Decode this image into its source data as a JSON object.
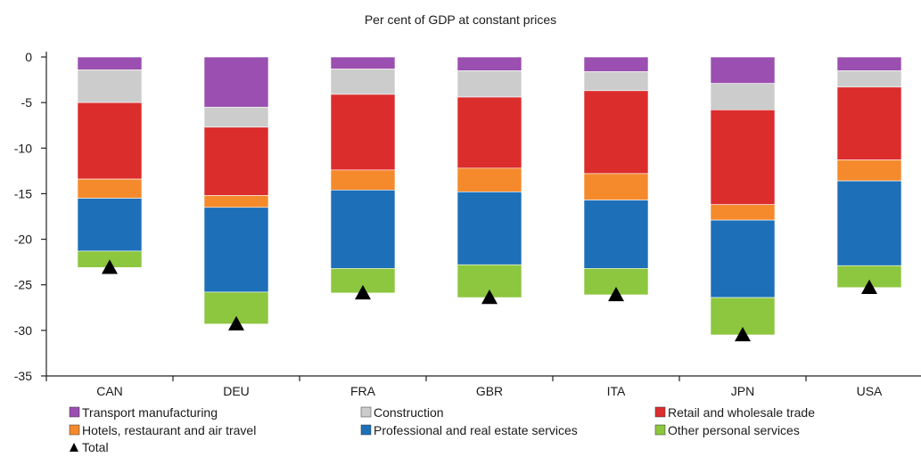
{
  "chart_data": {
    "type": "bar",
    "stacked": true,
    "title": "Per cent of GDP at constant prices",
    "categories": [
      "CAN",
      "DEU",
      "FRA",
      "GBR",
      "ITA",
      "JPN",
      "USA"
    ],
    "ylim": [
      -35,
      0
    ],
    "yticks": [
      0,
      -5,
      -10,
      -15,
      -20,
      -25,
      -30,
      -35
    ],
    "series": [
      {
        "name": "Transport manufacturing",
        "color": "#9b4fb0",
        "values": [
          -1.4,
          -5.5,
          -1.3,
          -1.5,
          -1.6,
          -2.9,
          -1.5
        ]
      },
      {
        "name": "Construction",
        "color": "#cccccc",
        "values": [
          -3.6,
          -2.2,
          -2.8,
          -2.9,
          -2.1,
          -2.9,
          -1.8
        ]
      },
      {
        "name": "Retail and wholesale trade",
        "color": "#dc2d2d",
        "values": [
          -8.4,
          -7.5,
          -8.3,
          -7.8,
          -9.1,
          -10.4,
          -8.0
        ]
      },
      {
        "name": "Hotels, restaurant and air travel",
        "color": "#f58a2c",
        "values": [
          -2.1,
          -1.3,
          -2.2,
          -2.6,
          -2.9,
          -1.7,
          -2.3
        ]
      },
      {
        "name": "Professional and real estate services",
        "color": "#1d6fb8",
        "values": [
          -5.8,
          -9.3,
          -8.6,
          -8.0,
          -7.5,
          -8.5,
          -9.3
        ]
      },
      {
        "name": "Other personal services",
        "color": "#8dc63f",
        "values": [
          -1.8,
          -3.5,
          -2.7,
          -3.6,
          -2.9,
          -4.1,
          -2.4
        ]
      }
    ],
    "total": {
      "name": "Total",
      "marker": "triangle",
      "values": [
        -23.1,
        -29.3,
        -25.9,
        -26.4,
        -26.1,
        -30.5,
        -25.3
      ]
    },
    "legend": {
      "position": "bottom",
      "entries": [
        "Transport manufacturing",
        "Construction",
        "Retail and wholesale trade",
        "Hotels, restaurant and air travel",
        "Professional and real estate services",
        "Other personal services",
        "Total"
      ]
    },
    "grid": false
  }
}
